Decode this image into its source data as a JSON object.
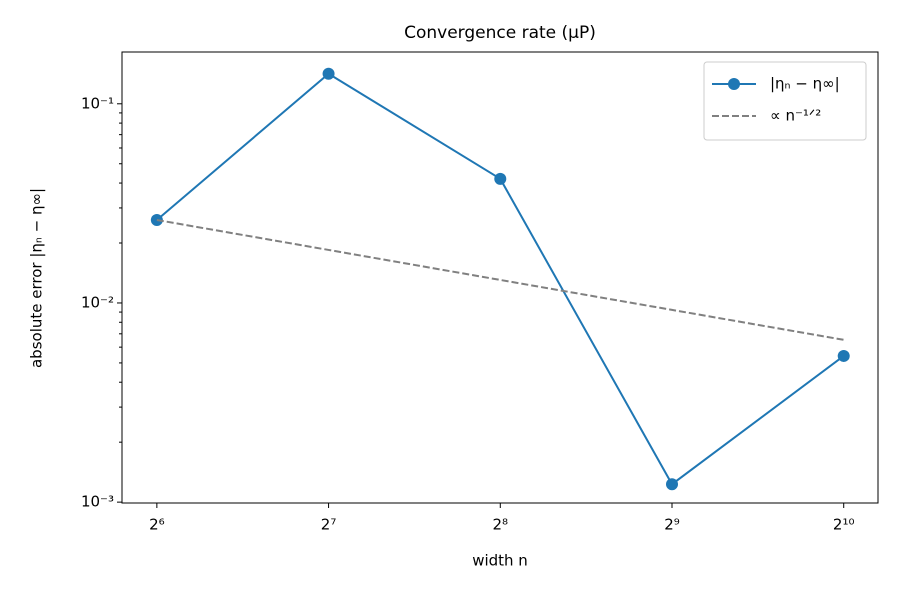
{
  "chart_data": {
    "type": "line",
    "title": "Convergence rate (μP)",
    "xlabel": "width n",
    "ylabel": "absolute error |ηₙ − η∞|",
    "x": [
      64,
      128,
      256,
      512,
      1024
    ],
    "series": [
      {
        "name": "|ηₙ − η∞|",
        "color": "#1f77b4",
        "linestyle": "solid",
        "marker": "o",
        "values": [
          0.0261,
          0.1416,
          0.042,
          0.00123,
          0.00542
        ]
      },
      {
        "name": "∝ n⁻¹ᐟ²",
        "color": "#808080",
        "linestyle": "dashed",
        "marker": "none",
        "values": [
          0.0261,
          0.01846,
          0.01305,
          0.00923,
          0.00653
        ]
      }
    ],
    "xscale": "log2",
    "yscale": "log",
    "xlim": [
      55.6,
      1176
    ],
    "ylim": [
      0.00099,
      0.182
    ],
    "xticks": [
      {
        "value": 64,
        "label": "2⁶"
      },
      {
        "value": 128,
        "label": "2⁷"
      },
      {
        "value": 256,
        "label": "2⁸"
      },
      {
        "value": 512,
        "label": "2⁹"
      },
      {
        "value": 1024,
        "label": "2¹⁰"
      }
    ],
    "yticks": [
      {
        "value": 0.001,
        "label": "10⁻³"
      },
      {
        "value": 0.01,
        "label": "10⁻²"
      },
      {
        "value": 0.1,
        "label": "10⁻¹"
      }
    ],
    "yticks_minor": [
      0.002,
      0.003,
      0.004,
      0.005,
      0.006,
      0.007,
      0.008,
      0.009,
      0.02,
      0.03,
      0.04,
      0.05,
      0.06,
      0.07,
      0.08,
      0.09
    ],
    "grid": false,
    "legend": "upper right"
  }
}
